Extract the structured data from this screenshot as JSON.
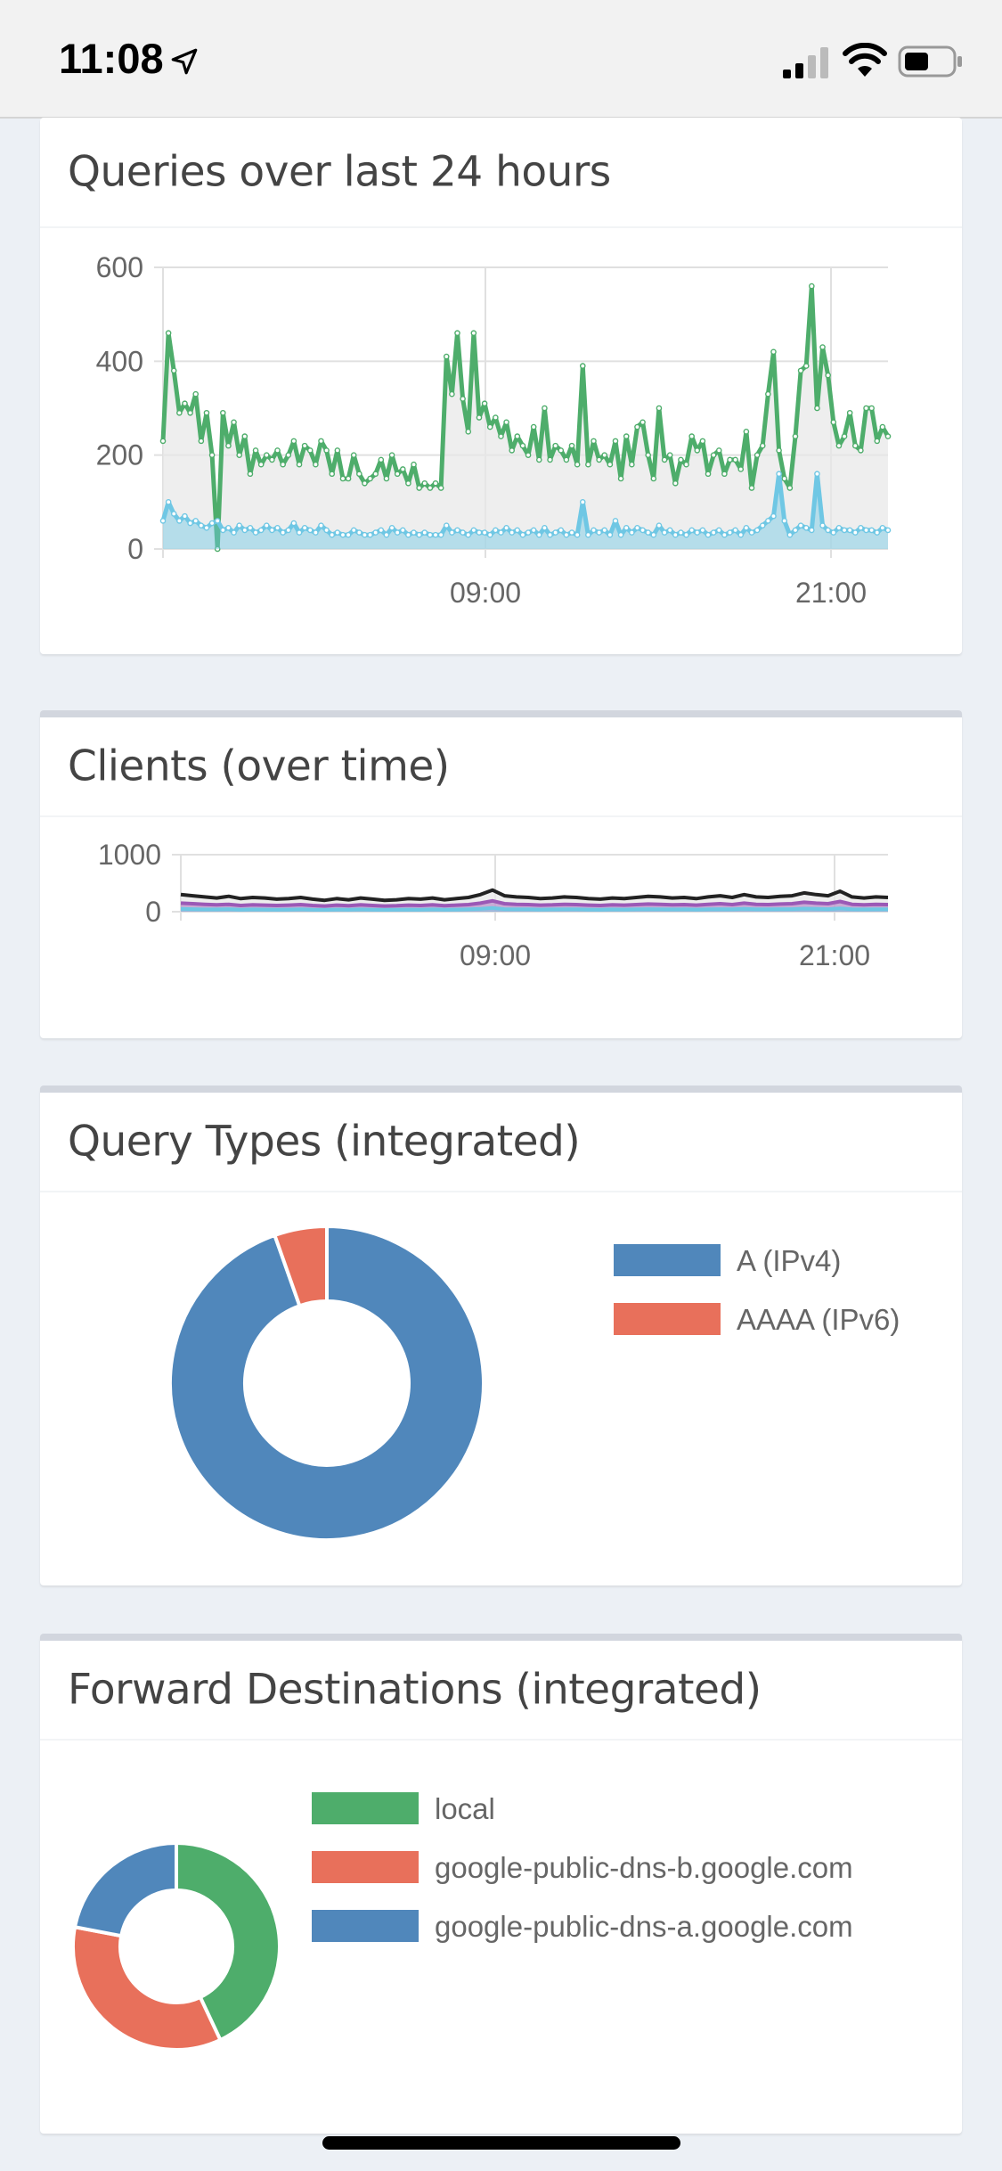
{
  "status_bar": {
    "time": "11:08",
    "icons": [
      "location-arrow-icon",
      "cellular-signal-icon",
      "wifi-icon",
      "battery-icon"
    ]
  },
  "panels": {
    "queries": {
      "title": "Queries over last 24 hours"
    },
    "clients": {
      "title": "Clients (over time)"
    },
    "query_types": {
      "title": "Query Types (integrated)"
    },
    "forward_destinations": {
      "title": "Forward Destinations (integrated)"
    }
  },
  "colors": {
    "green": "#4ead6b",
    "blue": "#5087bb",
    "red": "#e8705b",
    "light_blue": "#6fc7e4",
    "grid": "#e0e0e0"
  },
  "chart_data": [
    {
      "type": "area",
      "title": "Queries over last 24 hours",
      "ylim": [
        0,
        600
      ],
      "yticks": [
        0,
        200,
        400,
        600
      ],
      "xticks": [
        "09:00",
        "21:00"
      ],
      "grid": true,
      "series": [
        {
          "color": "#4ead6b",
          "values": [
            230,
            460,
            380,
            290,
            310,
            290,
            330,
            230,
            290,
            200,
            0,
            290,
            220,
            270,
            200,
            240,
            160,
            210,
            180,
            200,
            190,
            210,
            180,
            200,
            230,
            180,
            220,
            210,
            180,
            230,
            210,
            160,
            210,
            150,
            150,
            200,
            160,
            140,
            150,
            160,
            190,
            150,
            200,
            160,
            170,
            140,
            180,
            130,
            140,
            130,
            140,
            130,
            410,
            330,
            460,
            320,
            250,
            460,
            280,
            310,
            260,
            280,
            240,
            270,
            210,
            240,
            220,
            200,
            260,
            190,
            300,
            190,
            220,
            210,
            190,
            220,
            180,
            390,
            180,
            230,
            190,
            200,
            180,
            230,
            150,
            240,
            180,
            260,
            270,
            200,
            150,
            300,
            190,
            200,
            140,
            190,
            180,
            240,
            210,
            230,
            160,
            200,
            210,
            160,
            190,
            190,
            170,
            250,
            130,
            200,
            220,
            330,
            420,
            210,
            150,
            130,
            240,
            380,
            390,
            560,
            300,
            430,
            370,
            270,
            220,
            240,
            290,
            220,
            210,
            300,
            300,
            230,
            260,
            240
          ]
        },
        {
          "color": "#6fc7e4",
          "values": [
            60,
            100,
            75,
            60,
            70,
            55,
            60,
            50,
            45,
            55,
            60,
            40,
            45,
            35,
            50,
            40,
            45,
            35,
            40,
            50,
            40,
            45,
            35,
            40,
            55,
            35,
            45,
            40,
            35,
            50,
            40,
            30,
            35,
            30,
            30,
            40,
            35,
            30,
            30,
            35,
            40,
            30,
            45,
            35,
            40,
            30,
            35,
            30,
            35,
            30,
            30,
            30,
            50,
            35,
            40,
            35,
            30,
            40,
            35,
            35,
            30,
            40,
            35,
            45,
            35,
            40,
            30,
            35,
            40,
            30,
            45,
            30,
            35,
            40,
            30,
            35,
            30,
            100,
            30,
            40,
            35,
            40,
            30,
            60,
            30,
            45,
            35,
            45,
            40,
            35,
            30,
            50,
            35,
            40,
            30,
            35,
            30,
            40,
            35,
            40,
            30,
            35,
            40,
            30,
            35,
            40,
            30,
            45,
            35,
            40,
            50,
            60,
            70,
            160,
            60,
            30,
            40,
            50,
            45,
            40,
            160,
            50,
            40,
            35,
            45,
            40,
            40,
            35,
            45,
            40,
            40,
            35,
            45,
            40
          ]
        }
      ]
    },
    {
      "type": "area",
      "title": "Clients (over time)",
      "ylim": [
        0,
        1000
      ],
      "yticks": [
        0,
        1000
      ],
      "xticks": [
        "09:00",
        "21:00"
      ],
      "grid": true,
      "series": [
        {
          "color": "#222222",
          "values": [
            300,
            280,
            260,
            240,
            270,
            230,
            250,
            240,
            220,
            230,
            250,
            220,
            200,
            230,
            210,
            240,
            220,
            200,
            210,
            230,
            220,
            240,
            210,
            230,
            250,
            300,
            380,
            280,
            260,
            250,
            230,
            240,
            260,
            250,
            230,
            220,
            240,
            230,
            250,
            270,
            260,
            240,
            250,
            230,
            260,
            280,
            250,
            300,
            260,
            250,
            270,
            280,
            330,
            300,
            280,
            360,
            260,
            240,
            260,
            250
          ]
        },
        {
          "color": "#9b59b6",
          "values": [
            150,
            140,
            130,
            120,
            130,
            110,
            120,
            115,
            110,
            115,
            125,
            110,
            100,
            115,
            105,
            120,
            110,
            100,
            105,
            115,
            110,
            120,
            105,
            115,
            125,
            150,
            190,
            140,
            130,
            125,
            115,
            120,
            130,
            125,
            115,
            110,
            120,
            115,
            125,
            135,
            130,
            120,
            125,
            115,
            130,
            140,
            125,
            150,
            130,
            125,
            135,
            140,
            165,
            150,
            140,
            180,
            130,
            120,
            130,
            125
          ]
        },
        {
          "color": "#6fc7e4",
          "values": [
            50,
            45,
            40,
            40,
            45,
            35,
            40,
            38,
            35,
            38,
            42,
            35,
            33,
            38,
            35,
            40,
            36,
            33,
            35,
            38,
            36,
            40,
            35,
            38,
            42,
            50,
            65,
            46,
            43,
            42,
            38,
            40,
            43,
            42,
            38,
            36,
            40,
            38,
            42,
            45,
            43,
            40,
            42,
            38,
            43,
            46,
            42,
            50,
            43,
            42,
            45,
            46,
            55,
            50,
            46,
            60,
            43,
            40,
            43,
            42
          ]
        }
      ]
    },
    {
      "type": "pie",
      "title": "Query Types (integrated)",
      "legend_position": "right",
      "labels": [
        "A (IPv4)",
        "AAAA (IPv6)"
      ],
      "values": [
        94.6,
        5.4
      ],
      "colors": [
        "#5087bb",
        "#e8705b"
      ]
    },
    {
      "type": "pie",
      "title": "Forward Destinations (integrated)",
      "legend_position": "right",
      "labels": [
        "local",
        "google-public-dns-b.google.com",
        "google-public-dns-a.google.com"
      ],
      "values": [
        43,
        35,
        22
      ],
      "colors": [
        "#4ead6b",
        "#e8705b",
        "#5087bb"
      ]
    }
  ]
}
